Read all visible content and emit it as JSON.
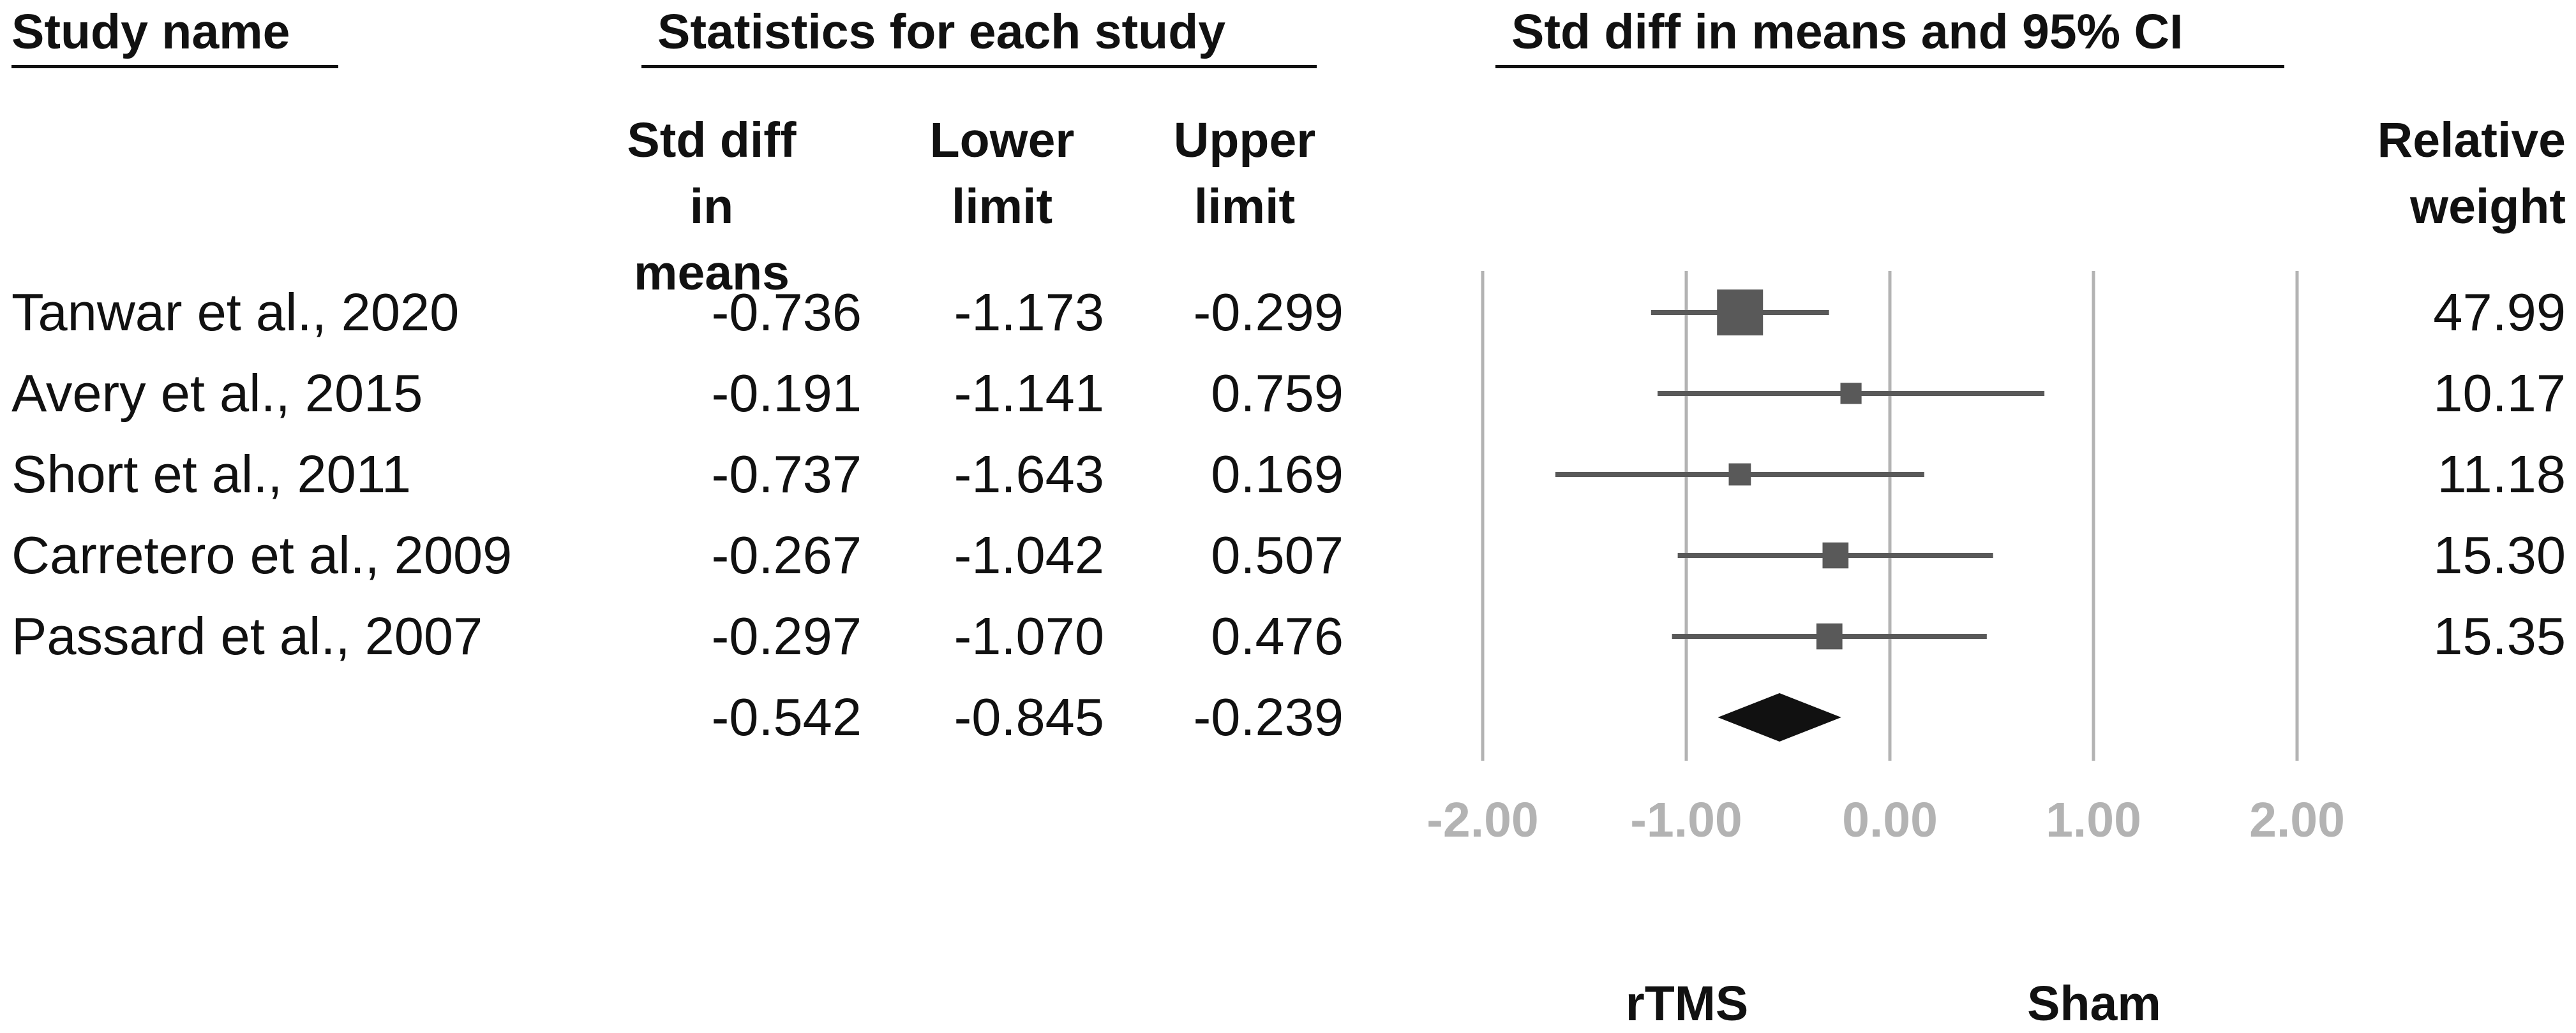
{
  "headers": {
    "study_name": "Study name",
    "statistics": "Statistics for each study",
    "plot": "Std diff in means and 95% CI",
    "std_diff": [
      "Std diff",
      "in means"
    ],
    "lower": [
      "Lower",
      "limit"
    ],
    "upper": [
      "Upper",
      "limit"
    ],
    "weight": [
      "Relative",
      "weight"
    ]
  },
  "rows": [
    {
      "name": "Tanwar et al., 2020",
      "std_diff": "-0.736",
      "lower": "-1.173",
      "upper": "-0.299",
      "weight": "47.99"
    },
    {
      "name": "Avery et al., 2015",
      "std_diff": "-0.191",
      "lower": "-1.141",
      "upper": "0.759",
      "weight": "10.17"
    },
    {
      "name": "Short et al., 2011",
      "std_diff": "-0.737",
      "lower": "-1.643",
      "upper": "0.169",
      "weight": "11.18"
    },
    {
      "name": "Carretero et al., 2009",
      "std_diff": "-0.267",
      "lower": "-1.042",
      "upper": "0.507",
      "weight": "15.30"
    },
    {
      "name": "Passard et al., 2007",
      "std_diff": "-0.297",
      "lower": "-1.070",
      "upper": "0.476",
      "weight": "15.35"
    }
  ],
  "summary": {
    "std_diff": "-0.542",
    "lower": "-0.845",
    "upper": "-0.239"
  },
  "chart_data": {
    "type": "forest",
    "title": "Std diff in means and 95% CI",
    "xlim": [
      -2,
      2
    ],
    "ticks": [
      -2,
      -1,
      0,
      1,
      2
    ],
    "tick_labels": [
      "-2.00",
      "-1.00",
      "0.00",
      "1.00",
      "2.00"
    ],
    "studies": [
      {
        "name": "Tanwar et al., 2020",
        "effect": -0.736,
        "lower": -1.173,
        "upper": -0.299,
        "weight": 47.99
      },
      {
        "name": "Avery et al., 2015",
        "effect": -0.191,
        "lower": -1.141,
        "upper": 0.759,
        "weight": 10.17
      },
      {
        "name": "Short et al., 2011",
        "effect": -0.737,
        "lower": -1.643,
        "upper": 0.169,
        "weight": 11.18
      },
      {
        "name": "Carretero et al., 2009",
        "effect": -0.267,
        "lower": -1.042,
        "upper": 0.507,
        "weight": 15.3
      },
      {
        "name": "Passard et al., 2007",
        "effect": -0.297,
        "lower": -1.07,
        "upper": 0.476,
        "weight": 15.35
      }
    ],
    "summary": {
      "effect": -0.542,
      "lower": -0.845,
      "upper": -0.239
    },
    "favors_left": "rTMS",
    "favors_right": "Sham",
    "colors": {
      "marker": "#595959",
      "diamond": "#111111",
      "grid": "#b3b3b3"
    }
  }
}
